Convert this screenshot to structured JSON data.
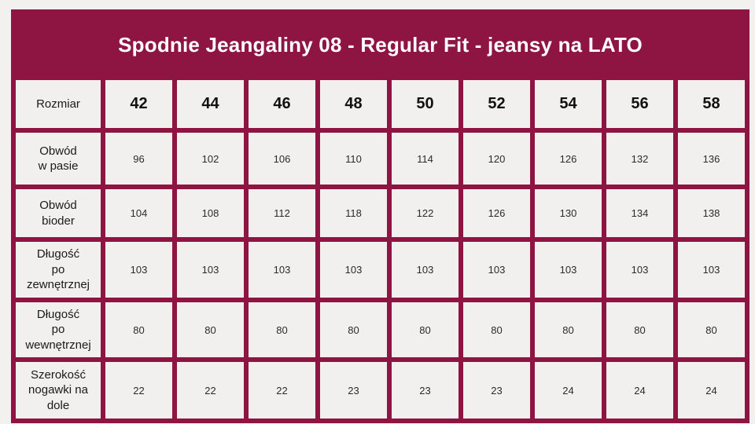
{
  "title": "Spodnie Jeangaliny 08 - Regular Fit - jeansy na LATO",
  "colors": {
    "maroon": "#8e1541",
    "cell_background": "#f1f0ef",
    "page_background": "#f2f1f0",
    "title_text": "#ffffff"
  },
  "chart_data": {
    "type": "table",
    "title": "Spodnie Jeangaliny 08 - Regular Fit - jeansy na LATO",
    "row_header_label": "Rozmiar",
    "columns": [
      "42",
      "44",
      "46",
      "48",
      "50",
      "52",
      "54",
      "56",
      "58"
    ],
    "rows": [
      {
        "label": "Obwód w pasie",
        "label_lines": [
          "Obwód",
          "w pasie"
        ],
        "values": [
          96,
          102,
          106,
          110,
          114,
          120,
          126,
          132,
          136
        ]
      },
      {
        "label": "Obwód bioder",
        "label_lines": [
          "Obwód",
          "bioder"
        ],
        "values": [
          104,
          108,
          112,
          118,
          122,
          126,
          130,
          134,
          138
        ]
      },
      {
        "label": "Długość po zewnętrznej",
        "label_lines": [
          "Długość",
          "po",
          "zewnętrznej"
        ],
        "values": [
          103,
          103,
          103,
          103,
          103,
          103,
          103,
          103,
          103
        ]
      },
      {
        "label": "Długość po wewnętrznej",
        "label_lines": [
          "Długość",
          "po",
          "wewnętrznej"
        ],
        "values": [
          80,
          80,
          80,
          80,
          80,
          80,
          80,
          80,
          80
        ]
      },
      {
        "label": "Szerokość nogawki na dole",
        "label_lines": [
          "Szerokość",
          "nogawki na",
          "dole"
        ],
        "values": [
          22,
          22,
          22,
          23,
          23,
          23,
          24,
          24,
          24
        ]
      }
    ]
  }
}
